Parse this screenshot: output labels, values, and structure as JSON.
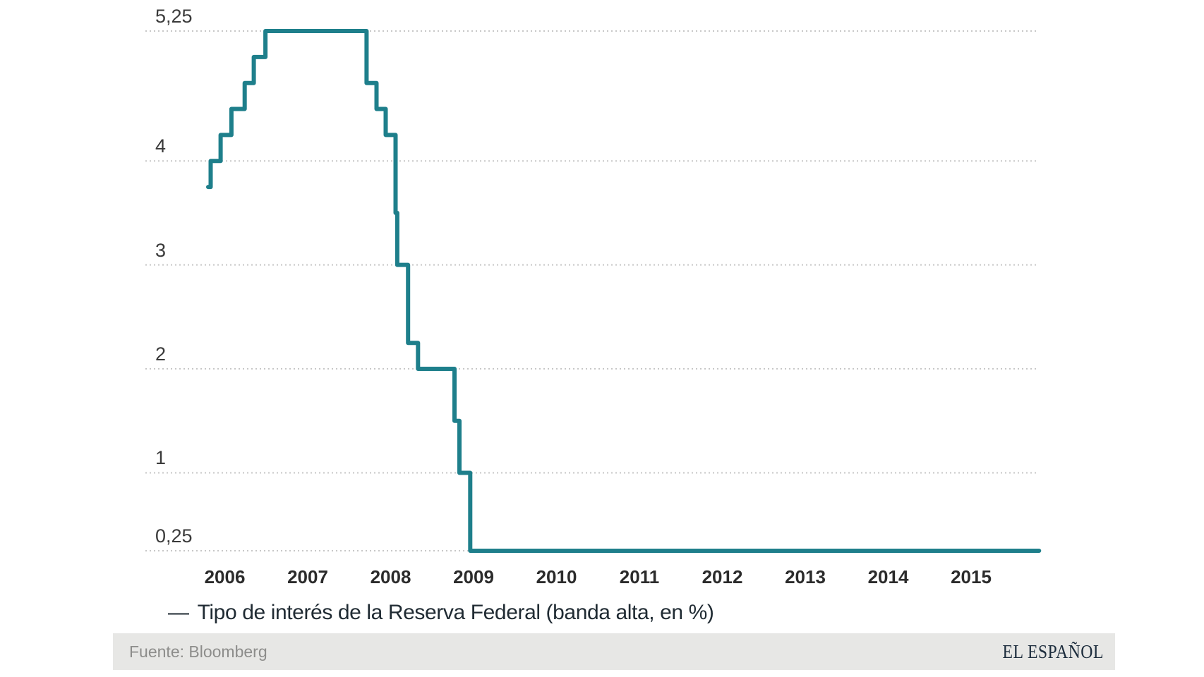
{
  "legend": {
    "dash": "—",
    "label": "Tipo de interés de la Reserva Federal (banda alta, en %)"
  },
  "footer": {
    "source": "Fuente: Bloomberg",
    "brand": "EL ESPAÑOL",
    "background": "#e7e7e5"
  },
  "colors": {
    "line": "#1e7f8b",
    "grid": "#c7c7c7",
    "y_tick_text": "#3a3a3a",
    "x_tick_text": "#2b2b2b",
    "legend_text": "#202b33",
    "source_text": "#8d8d8b",
    "brand_text": "#1d2d3d",
    "background": "#ffffff"
  },
  "chart_data": {
    "type": "line",
    "line_style": "step-after",
    "title": "",
    "xlabel": "",
    "ylabel": "",
    "grid": "horizontal-dotted",
    "legend_position": "bottom-left",
    "xlim": [
      2005.05,
      2015.85
    ],
    "ylim": [
      0.25,
      5.25
    ],
    "x_ticks": [
      2006,
      2007,
      2008,
      2009,
      2010,
      2011,
      2012,
      2013,
      2014,
      2015
    ],
    "y_ticks": [
      {
        "label": "5,25",
        "value": 5.25
      },
      {
        "label": "4",
        "value": 4
      },
      {
        "label": "3",
        "value": 3
      },
      {
        "label": "2",
        "value": 2
      },
      {
        "label": "1",
        "value": 1
      },
      {
        "label": "0,25",
        "value": 0.25
      }
    ],
    "series": [
      {
        "name": "Tipo de interés de la Reserva Federal (banda alta, en %)",
        "color": "#1e7f8b",
        "points": [
          [
            2005.8,
            3.75
          ],
          [
            2005.83,
            4.0
          ],
          [
            2005.95,
            4.25
          ],
          [
            2006.08,
            4.5
          ],
          [
            2006.24,
            4.75
          ],
          [
            2006.35,
            5.0
          ],
          [
            2006.49,
            5.25
          ],
          [
            2007.71,
            4.75
          ],
          [
            2007.83,
            4.5
          ],
          [
            2007.94,
            4.25
          ],
          [
            2008.06,
            3.5
          ],
          [
            2008.08,
            3.0
          ],
          [
            2008.21,
            2.25
          ],
          [
            2008.33,
            2.0
          ],
          [
            2008.77,
            1.5
          ],
          [
            2008.83,
            1.0
          ],
          [
            2008.96,
            0.25
          ],
          [
            2015.82,
            0.25
          ]
        ]
      }
    ]
  }
}
